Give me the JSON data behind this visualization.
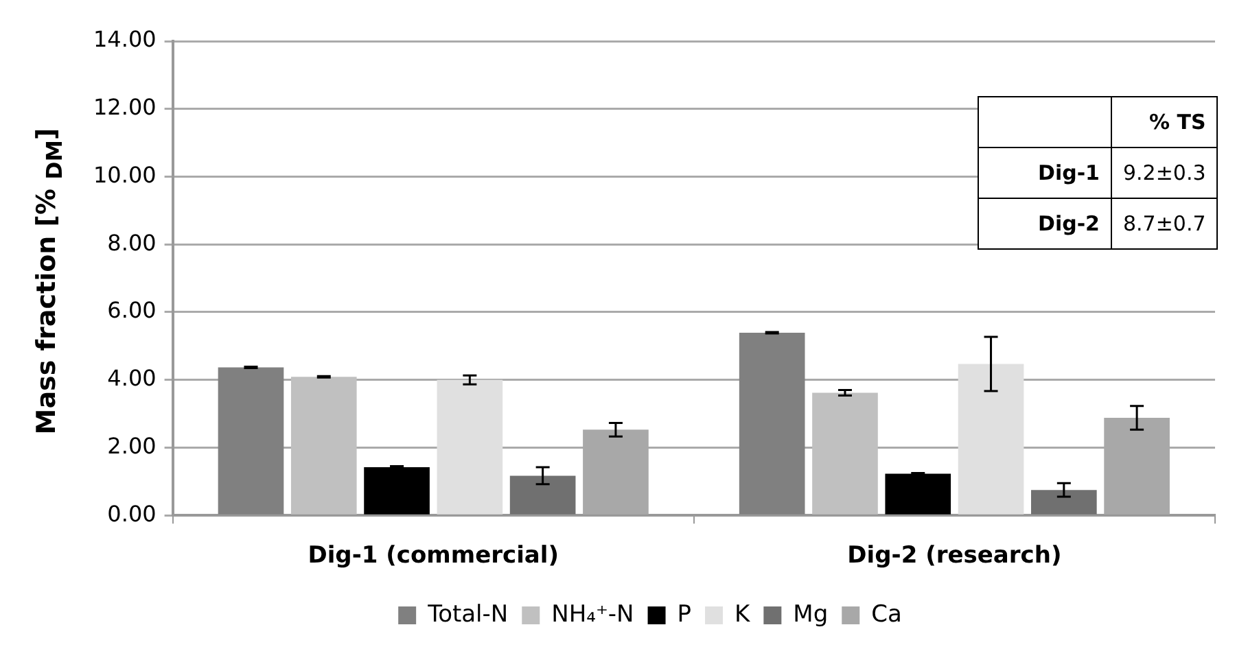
{
  "chart_data": {
    "type": "bar",
    "ylabel": "Mass fraction [% $_{DM}$]",
    "categories": [
      "Dig-1 (commercial)",
      "Dig-2 (research)"
    ],
    "series": [
      {
        "name": "Total-N",
        "color": "#808080",
        "values": [
          4.37,
          5.39
        ],
        "errors": [
          0.02,
          0.02
        ]
      },
      {
        "name": "NH₄⁺-N",
        "color": "#c0c0c0",
        "values": [
          4.09,
          3.62
        ],
        "errors": [
          0.02,
          0.08
        ]
      },
      {
        "name": "P",
        "color": "#000000",
        "values": [
          1.42,
          1.23
        ],
        "errors": [
          0.03,
          0.02
        ]
      },
      {
        "name": "K",
        "color": "#e0e0e0",
        "values": [
          4.0,
          4.47
        ],
        "errors": [
          0.13,
          0.8
        ]
      },
      {
        "name": "Mg",
        "color": "#707070",
        "values": [
          1.17,
          0.75
        ],
        "errors": [
          0.25,
          0.2
        ]
      },
      {
        "name": "Ca",
        "color": "#a8a8a8",
        "values": [
          2.53,
          2.88
        ],
        "errors": [
          0.2,
          0.35
        ]
      }
    ],
    "ylim": [
      0,
      14
    ],
    "yticks": [
      {
        "value": 0,
        "label": "0.00"
      },
      {
        "value": 2,
        "label": "2.00"
      },
      {
        "value": 4,
        "label": "4.00"
      },
      {
        "value": 6,
        "label": "6.00"
      },
      {
        "value": 8,
        "label": "8.00"
      },
      {
        "value": 10,
        "label": "10.00"
      },
      {
        "value": 12,
        "label": "12.00"
      },
      {
        "value": 14,
        "label": "14.00"
      }
    ],
    "grid": "y",
    "legend": "bottom",
    "annotations": [
      "% TS",
      "Dig-1",
      "9.2±0.3",
      "Dig-2",
      "8.7±0.7"
    ]
  }
}
